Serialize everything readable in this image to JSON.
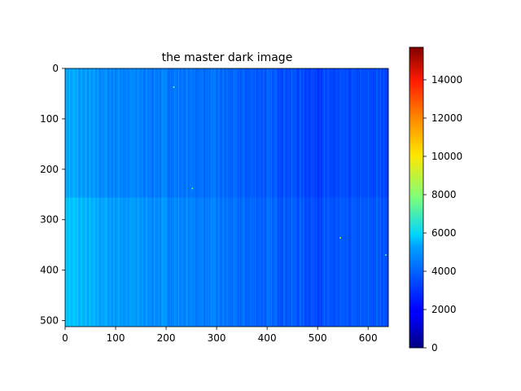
{
  "chart_data": {
    "type": "heatmap",
    "title": "the master dark image",
    "xlabel": "",
    "ylabel": "",
    "colormap": "jet",
    "image_size": {
      "width": 640,
      "height": 512
    },
    "xlim": [
      0,
      640
    ],
    "ylim": [
      512,
      0
    ],
    "xticks": [
      0,
      100,
      200,
      300,
      400,
      500,
      600
    ],
    "yticks": [
      0,
      100,
      200,
      300,
      400,
      500
    ],
    "grid": false,
    "colorbar": {
      "range": [
        0,
        15700
      ],
      "ticks": [
        0,
        2000,
        4000,
        6000,
        8000,
        10000,
        12000,
        14000
      ]
    },
    "value_profile": {
      "description_of_axis": "approximate mean pixel value by image column",
      "x": [
        0,
        50,
        100,
        150,
        200,
        250,
        300,
        350,
        400,
        450,
        500,
        550,
        600,
        640
      ],
      "values": [
        4700,
        4300,
        4100,
        4000,
        3900,
        3800,
        3700,
        3450,
        3400,
        3250,
        3050,
        3100,
        3150,
        3200
      ],
      "row_falloff": "slightly brighter toward the bottom rows on the left side"
    },
    "hot_pixels": [
      {
        "x": 215,
        "y": 37,
        "value": 9000
      },
      {
        "x": 252,
        "y": 238,
        "value": 8000
      },
      {
        "x": 545,
        "y": 336,
        "value": 9000
      },
      {
        "x": 635,
        "y": 370,
        "value": 8000
      }
    ]
  }
}
